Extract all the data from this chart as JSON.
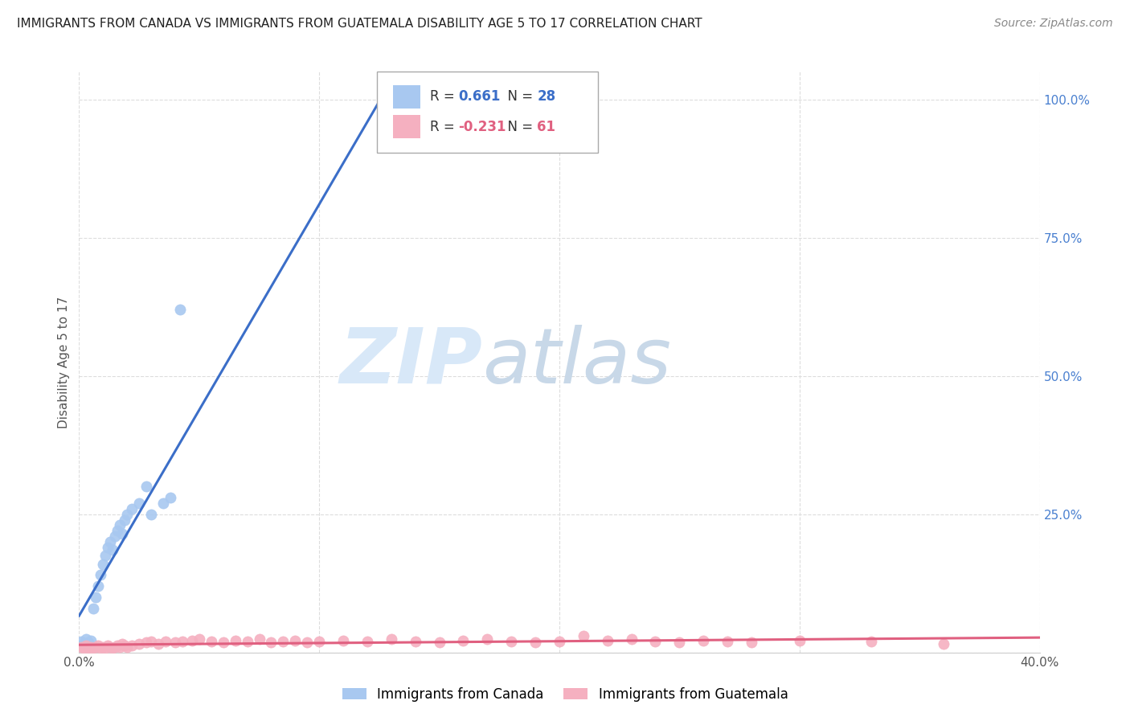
{
  "title": "IMMIGRANTS FROM CANADA VS IMMIGRANTS FROM GUATEMALA DISABILITY AGE 5 TO 17 CORRELATION CHART",
  "source": "Source: ZipAtlas.com",
  "ylabel": "Disability Age 5 to 17",
  "xlim": [
    0.0,
    0.4
  ],
  "ylim": [
    0.0,
    1.05
  ],
  "canada_color": "#A8C8F0",
  "guatemala_color": "#F5B0C0",
  "canada_line_color": "#3B6EC8",
  "guatemala_line_color": "#E06080",
  "canada_R": 0.661,
  "canada_N": 28,
  "guatemala_R": -0.231,
  "guatemala_N": 61,
  "watermark_zip": "ZIP",
  "watermark_atlas": "atlas",
  "watermark_color_zip": "#D8E8F8",
  "watermark_color_atlas": "#C8D8E8",
  "background_color": "#FFFFFF",
  "grid_color": "#DDDDDD",
  "ytick_color": "#4A80D0",
  "canada_scatter_x": [
    0.001,
    0.002,
    0.003,
    0.004,
    0.005,
    0.006,
    0.007,
    0.008,
    0.009,
    0.01,
    0.011,
    0.012,
    0.013,
    0.014,
    0.015,
    0.016,
    0.017,
    0.018,
    0.019,
    0.02,
    0.022,
    0.025,
    0.028,
    0.03,
    0.035,
    0.038,
    0.042,
    0.13
  ],
  "canada_scatter_y": [
    0.02,
    0.015,
    0.025,
    0.018,
    0.022,
    0.08,
    0.1,
    0.12,
    0.14,
    0.16,
    0.175,
    0.19,
    0.2,
    0.185,
    0.21,
    0.22,
    0.23,
    0.215,
    0.24,
    0.25,
    0.26,
    0.27,
    0.3,
    0.25,
    0.27,
    0.28,
    0.62,
    0.96
  ],
  "guatemala_scatter_x": [
    0.001,
    0.002,
    0.003,
    0.004,
    0.005,
    0.006,
    0.007,
    0.008,
    0.009,
    0.01,
    0.011,
    0.012,
    0.013,
    0.014,
    0.015,
    0.016,
    0.017,
    0.018,
    0.019,
    0.02,
    0.022,
    0.025,
    0.028,
    0.03,
    0.033,
    0.036,
    0.04,
    0.043,
    0.047,
    0.05,
    0.055,
    0.06,
    0.065,
    0.07,
    0.075,
    0.08,
    0.085,
    0.09,
    0.095,
    0.1,
    0.11,
    0.12,
    0.13,
    0.14,
    0.15,
    0.16,
    0.17,
    0.18,
    0.19,
    0.2,
    0.21,
    0.22,
    0.23,
    0.24,
    0.25,
    0.26,
    0.27,
    0.28,
    0.3,
    0.33,
    0.36
  ],
  "guatemala_scatter_y": [
    0.01,
    0.008,
    0.012,
    0.008,
    0.01,
    0.008,
    0.01,
    0.012,
    0.008,
    0.01,
    0.008,
    0.012,
    0.01,
    0.008,
    0.01,
    0.012,
    0.01,
    0.015,
    0.012,
    0.01,
    0.012,
    0.015,
    0.018,
    0.02,
    0.015,
    0.02,
    0.018,
    0.02,
    0.022,
    0.025,
    0.02,
    0.018,
    0.022,
    0.02,
    0.025,
    0.018,
    0.02,
    0.022,
    0.018,
    0.02,
    0.022,
    0.02,
    0.025,
    0.02,
    0.018,
    0.022,
    0.025,
    0.02,
    0.018,
    0.02,
    0.03,
    0.022,
    0.025,
    0.02,
    0.018,
    0.022,
    0.02,
    0.018,
    0.022,
    0.02,
    0.015
  ]
}
